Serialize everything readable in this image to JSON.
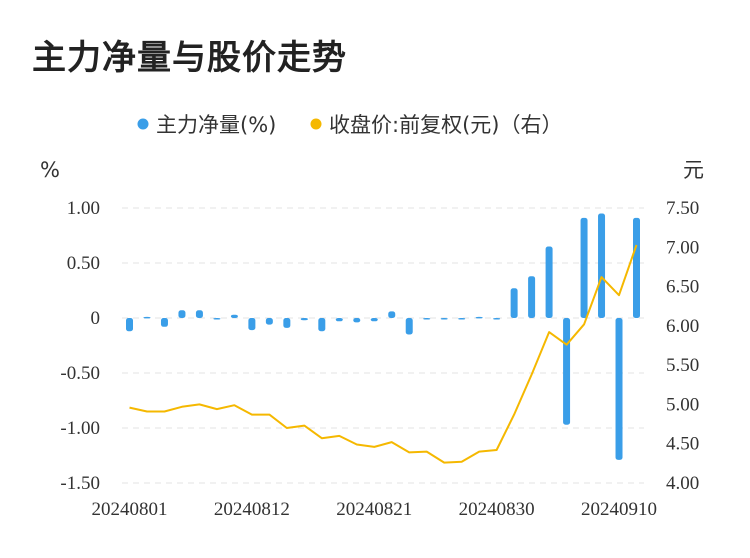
{
  "title": "主力净量与股价走势",
  "chart_data": {
    "type": "bar+line",
    "legend": [
      {
        "name": "主力净量(%)",
        "color": "#3a9ee8"
      },
      {
        "name": "收盘价:前复权(元)（右）",
        "color": "#f5b800"
      }
    ],
    "left_unit": "%",
    "right_unit": "元",
    "left_ticks": [
      "1.00",
      "0.50",
      "0",
      "-0.50",
      "-1.00",
      "-1.50"
    ],
    "right_ticks": [
      "7.50",
      "7.00",
      "6.50",
      "6.00",
      "5.50",
      "5.00",
      "4.50",
      "4.00"
    ],
    "x_tick_labels": [
      "20240801",
      "20240812",
      "20240821",
      "20240830",
      "20240910"
    ],
    "ylim_left": [
      -1.5,
      1.0
    ],
    "ylim_right": [
      4.0,
      7.5
    ],
    "bars": [
      {
        "date": "20240801",
        "value": -0.12
      },
      {
        "date": "20240802",
        "value": 0.01
      },
      {
        "date": "20240805",
        "value": -0.08
      },
      {
        "date": "20240806",
        "value": 0.07
      },
      {
        "date": "20240807",
        "value": 0.07
      },
      {
        "date": "20240808",
        "value": 0.0
      },
      {
        "date": "20240809",
        "value": 0.03
      },
      {
        "date": "20240812",
        "value": -0.11
      },
      {
        "date": "20240813",
        "value": -0.06
      },
      {
        "date": "20240814",
        "value": -0.09
      },
      {
        "date": "20240815",
        "value": -0.02
      },
      {
        "date": "20240816",
        "value": -0.12
      },
      {
        "date": "20240819",
        "value": -0.03
      },
      {
        "date": "20240820",
        "value": -0.04
      },
      {
        "date": "20240821",
        "value": -0.03
      },
      {
        "date": "20240822",
        "value": 0.06
      },
      {
        "date": "20240823",
        "value": -0.15
      },
      {
        "date": "20240826",
        "value": -0.01
      },
      {
        "date": "20240827",
        "value": 0.0
      },
      {
        "date": "20240828",
        "value": 0.0
      },
      {
        "date": "20240829",
        "value": 0.01
      },
      {
        "date": "20240830",
        "value": 0.0
      },
      {
        "date": "20240902",
        "value": 0.27
      },
      {
        "date": "20240903",
        "value": 0.38
      },
      {
        "date": "20240904",
        "value": 0.65
      },
      {
        "date": "20240905",
        "value": -0.97
      },
      {
        "date": "20240906",
        "value": 0.91
      },
      {
        "date": "20240909",
        "value": 0.95
      },
      {
        "date": "20240910",
        "value": -1.29
      },
      {
        "date": "20240911",
        "value": 0.91
      }
    ],
    "line": [
      {
        "date": "20240801",
        "value": 4.96
      },
      {
        "date": "20240802",
        "value": 4.91
      },
      {
        "date": "20240805",
        "value": 4.91
      },
      {
        "date": "20240806",
        "value": 4.97
      },
      {
        "date": "20240807",
        "value": 5.0
      },
      {
        "date": "20240808",
        "value": 4.94
      },
      {
        "date": "20240809",
        "value": 4.99
      },
      {
        "date": "20240812",
        "value": 4.87
      },
      {
        "date": "20240813",
        "value": 4.87
      },
      {
        "date": "20240814",
        "value": 4.7
      },
      {
        "date": "20240815",
        "value": 4.73
      },
      {
        "date": "20240816",
        "value": 4.57
      },
      {
        "date": "20240819",
        "value": 4.6
      },
      {
        "date": "20240820",
        "value": 4.49
      },
      {
        "date": "20240821",
        "value": 4.46
      },
      {
        "date": "20240822",
        "value": 4.52
      },
      {
        "date": "20240823",
        "value": 4.39
      },
      {
        "date": "20240826",
        "value": 4.4
      },
      {
        "date": "20240827",
        "value": 4.26
      },
      {
        "date": "20240828",
        "value": 4.27
      },
      {
        "date": "20240829",
        "value": 4.4
      },
      {
        "date": "20240830",
        "value": 4.42
      },
      {
        "date": "20240902",
        "value": 4.87
      },
      {
        "date": "20240903",
        "value": 5.38
      },
      {
        "date": "20240904",
        "value": 5.92
      },
      {
        "date": "20240905",
        "value": 5.76
      },
      {
        "date": "20240906",
        "value": 6.02
      },
      {
        "date": "20240909",
        "value": 6.62
      },
      {
        "date": "20240910",
        "value": 6.39
      },
      {
        "date": "20240911",
        "value": 7.03
      }
    ],
    "grid": "dashed-horizontal",
    "legend_position": "top-center"
  }
}
